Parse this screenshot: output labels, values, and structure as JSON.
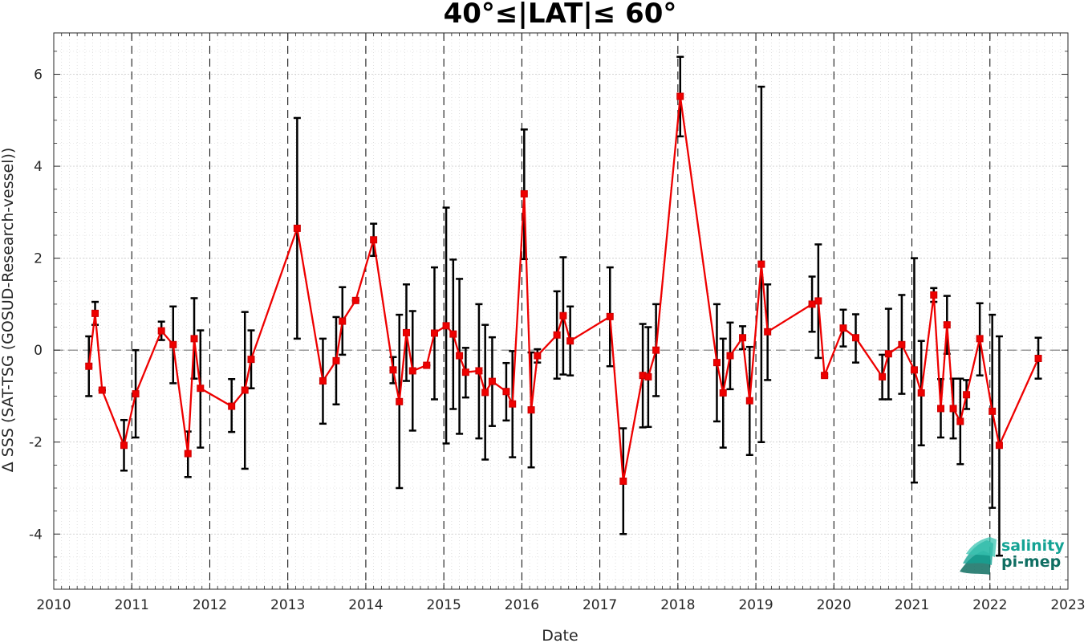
{
  "chart_data": {
    "type": "line",
    "title": "40°≤|LAT|≤ 60°",
    "xlabel": "Date",
    "ylabel": "Δ SSS (SAT-TSG (GOSUD-Research-vessel))",
    "xlim": [
      2010,
      2023
    ],
    "ylim": [
      -5.2,
      6.9
    ],
    "xticks": [
      2010,
      2011,
      2012,
      2013,
      2014,
      2015,
      2016,
      2017,
      2018,
      2019,
      2020,
      2021,
      2022,
      2023
    ],
    "xtick_labels": [
      "2010",
      "2011",
      "2012",
      "2013",
      "2014",
      "2015",
      "2016",
      "2017",
      "2018",
      "2019",
      "2020",
      "2021",
      "2022",
      "2023"
    ],
    "yticks": [
      -4,
      -2,
      0,
      2,
      4,
      6
    ],
    "ytick_labels": [
      "-4",
      "-2",
      "0",
      "2",
      "4",
      "6"
    ],
    "grid": true,
    "zero_line": true,
    "year_lines": true,
    "series": [
      {
        "color": "#ee0000",
        "errorbar_color": "#000000",
        "marker": "square",
        "points": [
          {
            "x": 2010.45,
            "y": -0.35,
            "lo": -1.0,
            "hi": 0.3
          },
          {
            "x": 2010.53,
            "y": 0.8,
            "lo": 0.55,
            "hi": 1.05
          },
          {
            "x": 2010.62,
            "y": -0.87,
            "lo": -0.87,
            "hi": -0.87
          },
          {
            "x": 2010.9,
            "y": -2.07,
            "lo": -2.62,
            "hi": -1.52
          },
          {
            "x": 2011.05,
            "y": -0.95,
            "lo": -1.9,
            "hi": 0.0
          },
          {
            "x": 2011.38,
            "y": 0.42,
            "lo": 0.22,
            "hi": 0.62
          },
          {
            "x": 2011.53,
            "y": 0.12,
            "lo": -0.72,
            "hi": 0.95
          },
          {
            "x": 2011.72,
            "y": -2.25,
            "lo": -2.76,
            "hi": -1.77
          },
          {
            "x": 2011.8,
            "y": 0.25,
            "lo": -0.62,
            "hi": 1.13
          },
          {
            "x": 2011.88,
            "y": -0.83,
            "lo": -2.12,
            "hi": 0.43
          },
          {
            "x": 2012.28,
            "y": -1.22,
            "lo": -1.78,
            "hi": -0.63
          },
          {
            "x": 2012.45,
            "y": -0.87,
            "lo": -2.58,
            "hi": 0.83
          },
          {
            "x": 2012.53,
            "y": -0.2,
            "lo": -0.83,
            "hi": 0.43
          },
          {
            "x": 2013.12,
            "y": 2.65,
            "lo": 0.25,
            "hi": 5.05
          },
          {
            "x": 2013.45,
            "y": -0.67,
            "lo": -1.6,
            "hi": 0.25
          },
          {
            "x": 2013.62,
            "y": -0.23,
            "lo": -1.18,
            "hi": 0.72
          },
          {
            "x": 2013.7,
            "y": 0.63,
            "lo": -0.1,
            "hi": 1.37
          },
          {
            "x": 2013.87,
            "y": 1.08,
            "lo": 1.08,
            "hi": 1.08
          },
          {
            "x": 2014.1,
            "y": 2.4,
            "lo": 2.05,
            "hi": 2.75
          },
          {
            "x": 2014.35,
            "y": -0.43,
            "lo": -0.72,
            "hi": -0.15
          },
          {
            "x": 2014.43,
            "y": -1.12,
            "lo": -3.0,
            "hi": 0.77
          },
          {
            "x": 2014.52,
            "y": 0.38,
            "lo": -0.67,
            "hi": 1.43
          },
          {
            "x": 2014.6,
            "y": -0.45,
            "lo": -1.75,
            "hi": 0.85
          },
          {
            "x": 2014.78,
            "y": -0.33,
            "lo": -0.33,
            "hi": -0.33
          },
          {
            "x": 2014.88,
            "y": 0.37,
            "lo": -1.07,
            "hi": 1.8
          },
          {
            "x": 2015.03,
            "y": 0.53,
            "lo": -2.03,
            "hi": 3.1
          },
          {
            "x": 2015.12,
            "y": 0.35,
            "lo": -1.28,
            "hi": 1.97
          },
          {
            "x": 2015.2,
            "y": -0.12,
            "lo": -1.82,
            "hi": 1.55
          },
          {
            "x": 2015.28,
            "y": -0.48,
            "lo": -1.03,
            "hi": 0.05
          },
          {
            "x": 2015.45,
            "y": -0.45,
            "lo": -1.92,
            "hi": 1.0
          },
          {
            "x": 2015.53,
            "y": -0.92,
            "lo": -2.38,
            "hi": 0.55
          },
          {
            "x": 2015.62,
            "y": -0.68,
            "lo": -1.65,
            "hi": 0.28
          },
          {
            "x": 2015.8,
            "y": -0.9,
            "lo": -1.53,
            "hi": -0.28
          },
          {
            "x": 2015.88,
            "y": -1.17,
            "lo": -2.33,
            "hi": -0.02
          },
          {
            "x": 2016.03,
            "y": 3.4,
            "lo": 1.98,
            "hi": 4.8
          },
          {
            "x": 2016.12,
            "y": -1.3,
            "lo": -2.55,
            "hi": -0.05
          },
          {
            "x": 2016.2,
            "y": -0.12,
            "lo": -0.27,
            "hi": 0.02
          },
          {
            "x": 2016.45,
            "y": 0.33,
            "lo": -0.62,
            "hi": 1.28
          },
          {
            "x": 2016.53,
            "y": 0.75,
            "lo": -0.53,
            "hi": 2.02
          },
          {
            "x": 2016.62,
            "y": 0.2,
            "lo": -0.55,
            "hi": 0.95
          },
          {
            "x": 2017.13,
            "y": 0.73,
            "lo": -0.35,
            "hi": 1.8
          },
          {
            "x": 2017.3,
            "y": -2.85,
            "lo": -4.0,
            "hi": -1.7
          },
          {
            "x": 2017.55,
            "y": -0.55,
            "lo": -1.68,
            "hi": 0.57
          },
          {
            "x": 2017.62,
            "y": -0.58,
            "lo": -1.67,
            "hi": 0.5
          },
          {
            "x": 2017.72,
            "y": 0.0,
            "lo": -1.0,
            "hi": 1.0
          },
          {
            "x": 2018.03,
            "y": 5.52,
            "lo": 4.65,
            "hi": 6.38
          },
          {
            "x": 2018.5,
            "y": -0.27,
            "lo": -1.55,
            "hi": 1.0
          },
          {
            "x": 2018.58,
            "y": -0.93,
            "lo": -2.12,
            "hi": 0.25
          },
          {
            "x": 2018.67,
            "y": -0.12,
            "lo": -0.85,
            "hi": 0.6
          },
          {
            "x": 2018.83,
            "y": 0.27,
            "lo": 0.02,
            "hi": 0.52
          },
          {
            "x": 2018.92,
            "y": -1.1,
            "lo": -2.28,
            "hi": 0.07
          },
          {
            "x": 2019.07,
            "y": 1.87,
            "lo": -2.0,
            "hi": 5.73
          },
          {
            "x": 2019.15,
            "y": 0.4,
            "lo": -0.65,
            "hi": 1.43
          },
          {
            "x": 2019.72,
            "y": 1.0,
            "lo": 0.4,
            "hi": 1.6
          },
          {
            "x": 2019.8,
            "y": 1.07,
            "lo": -0.17,
            "hi": 2.3
          },
          {
            "x": 2019.88,
            "y": -0.55,
            "lo": -0.58,
            "hi": -0.52
          },
          {
            "x": 2020.12,
            "y": 0.48,
            "lo": 0.08,
            "hi": 0.88
          },
          {
            "x": 2020.28,
            "y": 0.27,
            "lo": -0.27,
            "hi": 0.78
          },
          {
            "x": 2020.62,
            "y": -0.58,
            "lo": -1.07,
            "hi": -0.1
          },
          {
            "x": 2020.7,
            "y": -0.08,
            "lo": -1.07,
            "hi": 0.9
          },
          {
            "x": 2020.87,
            "y": 0.12,
            "lo": -0.95,
            "hi": 1.2
          },
          {
            "x": 2021.03,
            "y": -0.43,
            "lo": -2.88,
            "hi": 2.0
          },
          {
            "x": 2021.12,
            "y": -0.93,
            "lo": -2.07,
            "hi": 0.2
          },
          {
            "x": 2021.28,
            "y": 1.2,
            "lo": 1.05,
            "hi": 1.35
          },
          {
            "x": 2021.37,
            "y": -1.27,
            "lo": -1.9,
            "hi": -0.63
          },
          {
            "x": 2021.45,
            "y": 0.55,
            "lo": -0.08,
            "hi": 1.18
          },
          {
            "x": 2021.53,
            "y": -1.27,
            "lo": -1.92,
            "hi": -0.62
          },
          {
            "x": 2021.62,
            "y": -1.55,
            "lo": -2.48,
            "hi": -0.62
          },
          {
            "x": 2021.7,
            "y": -0.97,
            "lo": -1.28,
            "hi": -0.65
          },
          {
            "x": 2021.87,
            "y": 0.25,
            "lo": -0.55,
            "hi": 1.02
          },
          {
            "x": 2022.03,
            "y": -1.33,
            "lo": -3.43,
            "hi": 0.77
          },
          {
            "x": 2022.12,
            "y": -2.07,
            "lo": -4.47,
            "hi": 0.3
          },
          {
            "x": 2022.62,
            "y": -0.18,
            "lo": -0.62,
            "hi": 0.27
          }
        ]
      }
    ]
  },
  "logo": {
    "line1": "salinity",
    "line2": "pi-mep",
    "colors": [
      "#14a394",
      "#0f6e62"
    ]
  }
}
